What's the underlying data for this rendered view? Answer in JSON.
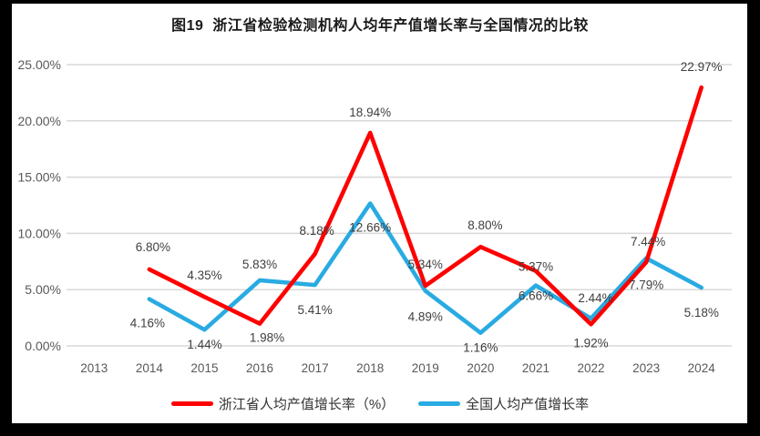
{
  "title": "图19  浙江省检验检测机构人均年产值增长率与全国情况的比较",
  "chart_data": {
    "type": "line",
    "categories": [
      "2013",
      "2014",
      "2015",
      "2016",
      "2017",
      "2018",
      "2019",
      "2020",
      "2021",
      "2022",
      "2023",
      "2024"
    ],
    "series": [
      {
        "name": "浙江省人均产值增长率（%）",
        "color": "#FE0000",
        "values": [
          null,
          6.8,
          4.35,
          1.98,
          8.18,
          18.94,
          5.34,
          8.8,
          6.66,
          1.92,
          7.44,
          22.97
        ]
      },
      {
        "name": "全国人均产值增长率",
        "color": "#29ABE2",
        "values": [
          null,
          4.16,
          1.44,
          5.83,
          5.41,
          12.66,
          4.89,
          1.16,
          5.37,
          2.44,
          7.79,
          5.18
        ]
      }
    ],
    "data_label_format": "0.00%",
    "y_ticks": [
      {
        "value": 0,
        "label": "0.00%"
      },
      {
        "value": 5,
        "label": "5.00%"
      },
      {
        "value": 10,
        "label": "10.00%"
      },
      {
        "value": 15,
        "label": "15.00%"
      },
      {
        "value": 20,
        "label": "20.00%"
      },
      {
        "value": 25,
        "label": "25.00%"
      }
    ],
    "ylim": [
      0,
      25
    ],
    "grid": true,
    "legend_position": "bottom",
    "colors": {
      "gridline": "#D9D9D9",
      "axis_text": "#595959",
      "data_label_text": "#3F3F3F",
      "background": "#FFFFFF",
      "frame": "#000000"
    }
  }
}
